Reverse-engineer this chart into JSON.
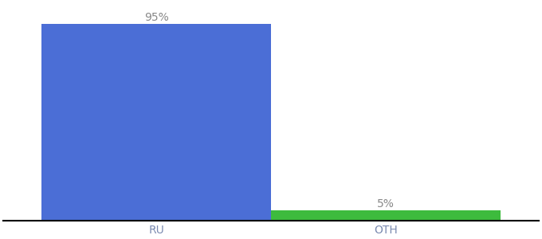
{
  "categories": [
    "RU",
    "OTH"
  ],
  "values": [
    95,
    5
  ],
  "bar_colors": [
    "#4B6ED6",
    "#3dbb3d"
  ],
  "label_texts": [
    "95%",
    "5%"
  ],
  "label_color": "#888888",
  "tick_color": "#7a8ab0",
  "ylim": [
    0,
    105
  ],
  "background_color": "#ffffff",
  "label_fontsize": 10,
  "tick_fontsize": 10,
  "bar_width": 0.45,
  "x_positions": [
    0.3,
    0.75
  ],
  "xlim": [
    0.0,
    1.05
  ]
}
